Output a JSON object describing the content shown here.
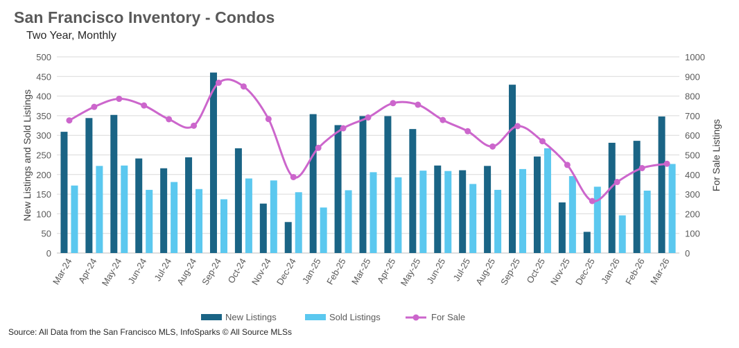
{
  "chart_data": {
    "type": "bar",
    "title": "San Francisco Inventory - Condos",
    "subtitle": "Two Year, Monthly",
    "ylabel": "New Listings and Sold Listings",
    "y2label": "For Sale Listings",
    "ylim": [
      0,
      500
    ],
    "y2lim": [
      0,
      1000
    ],
    "yticks": [
      "0",
      "50",
      "100",
      "150",
      "200",
      "250",
      "300",
      "350",
      "400",
      "450",
      "500"
    ],
    "y2ticks": [
      "0",
      "100",
      "200",
      "300",
      "400",
      "500",
      "600",
      "700",
      "800",
      "900",
      "1000"
    ],
    "categories": [
      "Mar-24",
      "Apr-24",
      "May-24",
      "Jun-24",
      "Jul-24",
      "Aug-24",
      "Sep-24",
      "Oct-24",
      "Nov-24",
      "Dec-24",
      "Jan-25",
      "Feb-25",
      "Mar-25",
      "Apr-25",
      "May-25",
      "Jun-25",
      "Jul-25",
      "Aug-25",
      "Sep-25",
      "Oct-25",
      "Nov-25",
      "Dec-25",
      "Jan-26",
      "Feb-26",
      "Mar-26"
    ],
    "series": [
      {
        "name": "New Listings",
        "type": "bar",
        "axis": "left",
        "color": "#1a6485",
        "values": [
          309,
          344,
          352,
          241,
          216,
          244,
          460,
          267,
          126,
          79,
          354,
          326,
          349,
          349,
          316,
          223,
          211,
          222,
          429,
          246,
          129,
          54,
          281,
          286,
          348
        ]
      },
      {
        "name": "Sold Listings",
        "type": "bar",
        "axis": "left",
        "color": "#5bc8ef",
        "values": [
          172,
          222,
          223,
          161,
          181,
          163,
          137,
          190,
          185,
          155,
          116,
          160,
          206,
          193,
          210,
          209,
          176,
          161,
          214,
          267,
          196,
          169,
          96,
          159,
          227
        ]
      },
      {
        "name": "For Sale",
        "type": "line",
        "axis": "right",
        "color": "#cc66cc",
        "values": [
          676,
          745,
          786,
          752,
          682,
          649,
          868,
          849,
          683,
          387,
          536,
          636,
          691,
          764,
          756,
          678,
          621,
          543,
          647,
          570,
          449,
          265,
          362,
          433,
          455
        ]
      }
    ],
    "legend_position": "bottom",
    "grid": true
  },
  "source": "Source: All Data from the San Francisco MLS, InfoSparks © All Source MLSs"
}
